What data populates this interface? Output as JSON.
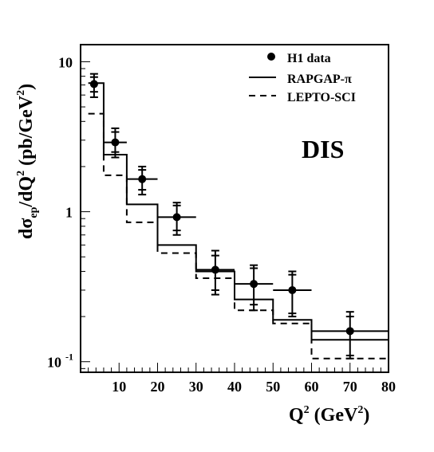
{
  "chart_data": {
    "type": "line",
    "title": "",
    "annotation": "DIS",
    "xlabel_base": "Q",
    "xlabel_sup": "2",
    "xlabel_units": " (GeV",
    "xlabel_units_sup": "2",
    "xlabel_close": ")",
    "ylabel": "dσep/dQ2 (pb/GeV2)",
    "x_scale": "linear",
    "y_scale": "log",
    "xlim": [
      0,
      80
    ],
    "ylim": [
      0.085,
      13
    ],
    "grid": false,
    "legend_position": "top-right",
    "x_ticks": [
      "10",
      "20",
      "30",
      "40",
      "50",
      "60",
      "70",
      "80"
    ],
    "y_ticks": [
      "10",
      "1",
      "10"
    ],
    "y_tick_exp": "-1",
    "series": [
      {
        "name": "H1 data",
        "style": "points",
        "points": [
          {
            "x": 3.5,
            "y": 7.1,
            "xerr": 1.0,
            "ylo_stat": 6.3,
            "yhi_stat": 7.9,
            "ylo": 5.8,
            "yhi": 8.3
          },
          {
            "x": 9,
            "y": 2.9,
            "xerr": 3,
            "ylo_stat": 2.5,
            "yhi_stat": 3.4,
            "ylo": 2.3,
            "yhi": 3.6
          },
          {
            "x": 16,
            "y": 1.65,
            "xerr": 4,
            "ylo_stat": 1.4,
            "yhi_stat": 1.9,
            "ylo": 1.3,
            "yhi": 2.0
          },
          {
            "x": 25,
            "y": 0.92,
            "xerr": 5,
            "ylo_stat": 0.75,
            "yhi_stat": 1.1,
            "ylo": 0.7,
            "yhi": 1.15
          },
          {
            "x": 35,
            "y": 0.41,
            "xerr": 5,
            "ylo_stat": 0.3,
            "yhi_stat": 0.51,
            "ylo": 0.28,
            "yhi": 0.55
          },
          {
            "x": 45,
            "y": 0.33,
            "xerr": 5,
            "ylo_stat": 0.24,
            "yhi_stat": 0.42,
            "ylo": 0.22,
            "yhi": 0.44
          },
          {
            "x": 55,
            "y": 0.3,
            "xerr": 5,
            "ylo_stat": 0.21,
            "yhi_stat": 0.38,
            "ylo": 0.2,
            "yhi": 0.4
          },
          {
            "x": 70,
            "y": 0.16,
            "xerr": 10,
            "ylo_stat": 0.11,
            "yhi_stat": 0.2,
            "ylo": 0.105,
            "yhi": 0.215
          }
        ]
      },
      {
        "name": "RAPGAP-π",
        "style": "solid-step",
        "edges": [
          2,
          6,
          12,
          20,
          30,
          40,
          50,
          60,
          80
        ],
        "values": [
          7.2,
          2.4,
          1.12,
          0.6,
          0.4,
          0.26,
          0.19,
          0.14
        ]
      },
      {
        "name": "LEPTO-SCI",
        "style": "dashed-step",
        "edges": [
          2,
          6,
          12,
          20,
          30,
          40,
          50,
          60,
          80
        ],
        "values": [
          4.5,
          1.75,
          0.85,
          0.53,
          0.36,
          0.22,
          0.18,
          0.105
        ]
      }
    ]
  }
}
